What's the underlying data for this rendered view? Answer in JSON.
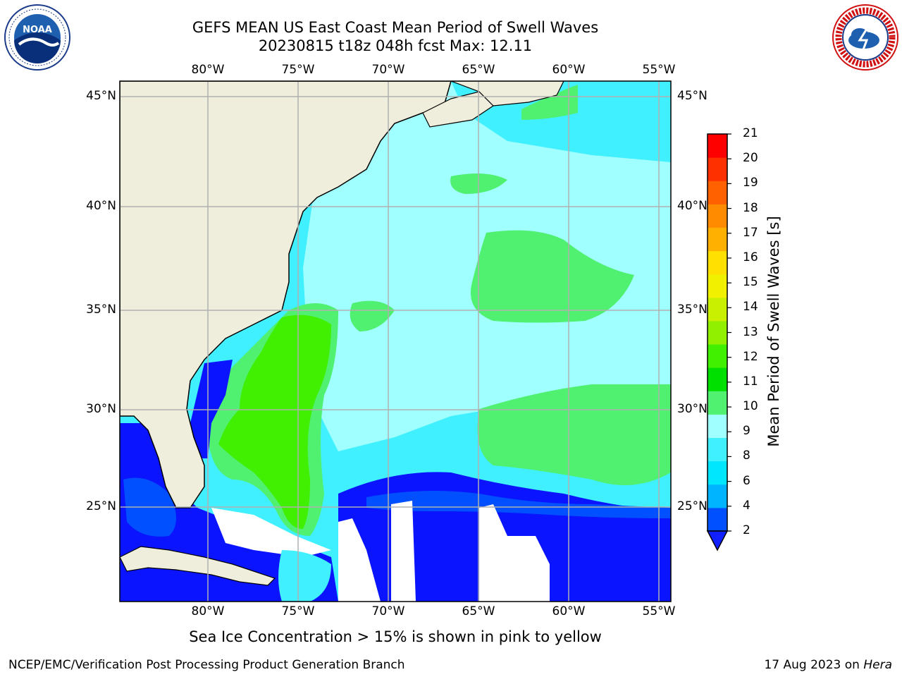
{
  "title_line1": "GEFS MEAN US East Coast Mean Period of Swell Waves",
  "title_line2": "20230815 t18z 048h fcst   Max: 12.11",
  "lon_labels": [
    "80°W",
    "75°W",
    "70°W",
    "65°W",
    "60°W",
    "55°W"
  ],
  "lat_labels": [
    "45°N",
    "40°N",
    "35°N",
    "30°N",
    "25°N"
  ],
  "colorbar": {
    "title": "Mean Period of Swell Waves [s]",
    "ticks": [
      "21",
      "20",
      "19",
      "18",
      "17",
      "16",
      "15",
      "14",
      "13",
      "12",
      "11",
      "10",
      "9",
      "8",
      "6",
      "4",
      "2"
    ],
    "colors": [
      "#0050ff",
      "#00b4ff",
      "#00e6ff",
      "#40f0ff",
      "#a0ffff",
      "#50f070",
      "#00e000",
      "#40f000",
      "#90f000",
      "#c8f000",
      "#f0f000",
      "#ffe000",
      "#ffb000",
      "#ff8c00",
      "#ff6000",
      "#ff3000",
      "#ff0000"
    ],
    "extend_color": "#1020ff"
  },
  "colors": {
    "land": "#efeedc",
    "no_data": "#ffffff",
    "deep_blue": "#0a14ff",
    "grid": "#b0b0b0"
  },
  "ice_note": "Sea Ice Concentration > 15% is shown in pink to yellow",
  "footer_left": "NCEP/EMC/Verification Post Processing Product Generation Branch",
  "footer_date": "17 Aug 2023 on ",
  "footer_machine": "Hera",
  "logos": {
    "left": "NOAA",
    "right": "NATIONAL WEATHER SERVICE"
  }
}
